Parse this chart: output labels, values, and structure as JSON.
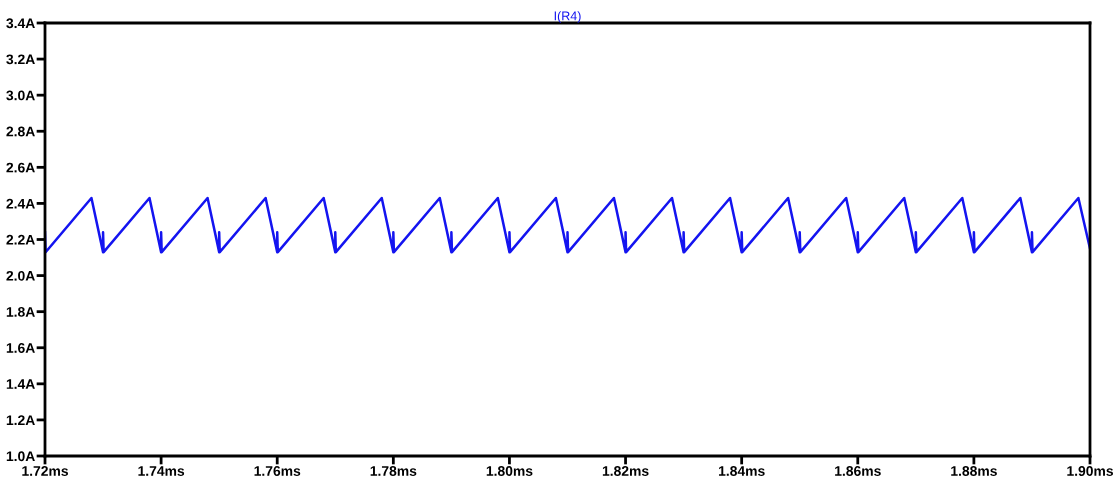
{
  "chart_data": {
    "type": "line",
    "title": "I(R4)",
    "xlim": [
      1.72,
      1.9
    ],
    "ylim": [
      1.0,
      3.4
    ],
    "xticks": [
      {
        "value": 1.72,
        "label": "1.72ms"
      },
      {
        "value": 1.74,
        "label": "1.74ms"
      },
      {
        "value": 1.76,
        "label": "1.76ms"
      },
      {
        "value": 1.78,
        "label": "1.78ms"
      },
      {
        "value": 1.8,
        "label": "1.80ms"
      },
      {
        "value": 1.82,
        "label": "1.82ms"
      },
      {
        "value": 1.84,
        "label": "1.84ms"
      },
      {
        "value": 1.86,
        "label": "1.86ms"
      },
      {
        "value": 1.88,
        "label": "1.88ms"
      },
      {
        "value": 1.9,
        "label": "1.90ms"
      }
    ],
    "yticks": [
      {
        "value": 1.0,
        "label": "1.0A"
      },
      {
        "value": 1.2,
        "label": "1.2A"
      },
      {
        "value": 1.4,
        "label": "1.4A"
      },
      {
        "value": 1.6,
        "label": "1.6A"
      },
      {
        "value": 1.8,
        "label": "1.8A"
      },
      {
        "value": 2.0,
        "label": "2.0A"
      },
      {
        "value": 2.2,
        "label": "2.2A"
      },
      {
        "value": 2.4,
        "label": "2.4A"
      },
      {
        "value": 2.6,
        "label": "2.6A"
      },
      {
        "value": 2.8,
        "label": "2.8A"
      },
      {
        "value": 3.0,
        "label": "3.0A"
      },
      {
        "value": 3.2,
        "label": "3.2A"
      },
      {
        "value": 3.4,
        "label": "3.4A"
      }
    ],
    "grid": false,
    "marker": "none",
    "line_style": "solid",
    "series": [
      {
        "color": "#1414f0",
        "x": [
          1.72,
          1.7201,
          1.728,
          1.73,
          1.73,
          1.7301,
          1.738,
          1.74,
          1.74,
          1.7401,
          1.748,
          1.75,
          1.75,
          1.7501,
          1.758,
          1.76,
          1.76,
          1.7601,
          1.768,
          1.77,
          1.77,
          1.7701,
          1.778,
          1.78,
          1.78,
          1.7801,
          1.788,
          1.79,
          1.79,
          1.7901,
          1.798,
          1.8,
          1.8,
          1.8001,
          1.808,
          1.81,
          1.81,
          1.8101,
          1.818,
          1.82,
          1.82,
          1.8201,
          1.828,
          1.83,
          1.83,
          1.8301,
          1.838,
          1.84,
          1.84,
          1.8401,
          1.848,
          1.85,
          1.85,
          1.8501,
          1.858,
          1.86,
          1.86,
          1.8601,
          1.868,
          1.87,
          1.87,
          1.8701,
          1.878,
          1.88,
          1.88,
          1.8801,
          1.888,
          1.89,
          1.89,
          1.8901,
          1.898,
          1.9
        ],
        "values": [
          2.24,
          2.13,
          2.43,
          2.13,
          2.24,
          2.13,
          2.43,
          2.13,
          2.24,
          2.13,
          2.43,
          2.13,
          2.24,
          2.13,
          2.43,
          2.13,
          2.24,
          2.13,
          2.43,
          2.13,
          2.24,
          2.13,
          2.43,
          2.13,
          2.24,
          2.13,
          2.43,
          2.13,
          2.24,
          2.13,
          2.43,
          2.13,
          2.24,
          2.13,
          2.43,
          2.13,
          2.24,
          2.13,
          2.43,
          2.13,
          2.24,
          2.13,
          2.43,
          2.13,
          2.24,
          2.13,
          2.43,
          2.13,
          2.24,
          2.13,
          2.43,
          2.13,
          2.24,
          2.13,
          2.43,
          2.13,
          2.24,
          2.13,
          2.43,
          2.13,
          2.24,
          2.13,
          2.43,
          2.13,
          2.24,
          2.13,
          2.43,
          2.13,
          2.24,
          2.13,
          2.43,
          2.15
        ]
      }
    ]
  }
}
